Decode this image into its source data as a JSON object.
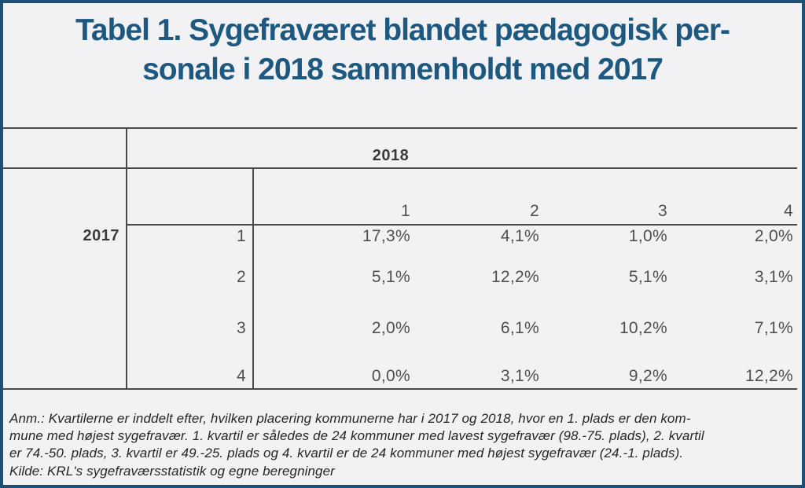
{
  "page": {
    "title_line1": "Tabel 1. Sygefraværet blandet pædagogisk per-",
    "title_line2": "sonale i 2018 sammenholdt med 2017"
  },
  "table": {
    "col_group_label": "2018",
    "row_group_label": "2017",
    "col_headers": [
      "1",
      "2",
      "3",
      "4"
    ],
    "row_headers": [
      "1",
      "2",
      "3",
      "4"
    ],
    "values": [
      [
        "17,3%",
        "4,1%",
        "1,0%",
        "2,0%"
      ],
      [
        "5,1%",
        "12,2%",
        "5,1%",
        "3,1%"
      ],
      [
        "2,0%",
        "6,1%",
        "10,2%",
        "7,1%"
      ],
      [
        "0,0%",
        "3,1%",
        "9,2%",
        "12,2%"
      ]
    ]
  },
  "footnote": {
    "lines": [
      "Anm.: Kvartilerne er inddelt efter, hvilken placering kommunerne har i 2017 og 2018, hvor en 1. plads er den kom-",
      "mune med højest sygefravær. 1. kvartil er således de 24 kommuner med lavest sygefravær (98.-75. plads), 2. kvartil",
      "er 74.-50. plads, 3. kvartil er 49.-25. plads og 4. kvartil er de 24 kommuner med højest sygefravær (24.-1. plads).",
      "Kilde: KRL's sygefraværsstatistik og egne beregninger"
    ]
  },
  "chart_data": {
    "type": "table",
    "title": "Tabel 1. Sygefraværet blandet pædagogisk personale i 2018 sammenholdt med 2017",
    "columns_group_label": "2018",
    "rows_group_label": "2017",
    "col_headers": [
      1,
      2,
      3,
      4
    ],
    "row_headers": [
      1,
      2,
      3,
      4
    ],
    "values_percent": [
      [
        17.3,
        4.1,
        1.0,
        2.0
      ],
      [
        5.1,
        12.2,
        5.1,
        3.1
      ],
      [
        2.0,
        6.1,
        10.2,
        7.1
      ],
      [
        0.0,
        3.1,
        9.2,
        12.2
      ]
    ],
    "note": "Anm.: Kvartilerne er inddelt efter, hvilken placering kommunerne har i 2017 og 2018, hvor en 1. plads er den kommune med højest sygefravær. 1. kvartil er således de 24 kommuner med lavest sygefravær (98.-75. plads), 2. kvartil er 74.-50. plads, 3. kvartil er 49.-25. plads og 4. kvartil er de 24 kommuner med højest sygefravær (24.-1. plads).",
    "source": "Kilde: KRL's sygefraværsstatistik og egne beregninger"
  },
  "colors": {
    "page_background": "#f2f2f4",
    "frame_border": "#1d5076",
    "title_text": "#1d5880",
    "table_rules": "#4a4a4a",
    "table_text": "#4f4f4f",
    "group_label_text": "#3b3b3b",
    "footnote_text": "#262626"
  }
}
